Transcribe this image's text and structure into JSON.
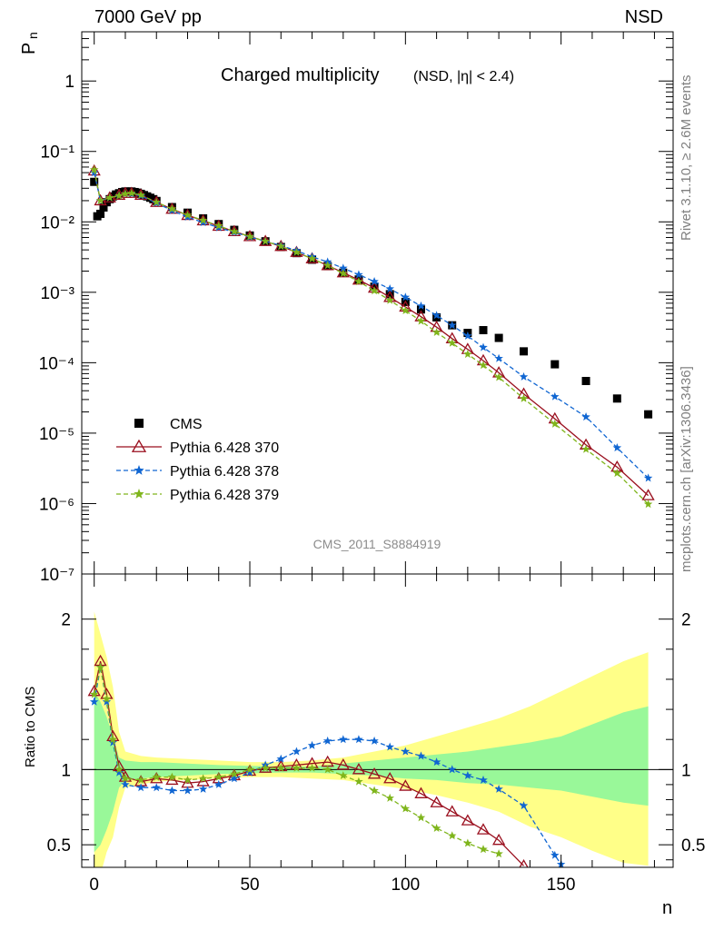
{
  "header": {
    "left": "7000 GeV pp",
    "right": "NSD"
  },
  "side_text": {
    "rivet": "Rivet 3.1.10, ≥ 2.6M events",
    "mcplots": "mcplots.cern.ch [arXiv:1306.3436]"
  },
  "chart_data": [
    {
      "type": "scatter",
      "title": "Charged multiplicity",
      "title_suffix": "(NSD, |η| < 2.4)",
      "ylabel": "P",
      "ylabel_sub": "n",
      "watermark": "CMS_2011_S8884919",
      "yscale": "log",
      "ylim": [
        1e-07,
        5
      ],
      "xlim": [
        -4,
        186
      ],
      "y_tick_labels": [
        "1",
        "10⁻¹",
        "10⁻²",
        "10⁻³",
        "10⁻⁴",
        "10⁻⁵",
        "10⁻⁶",
        "10⁻⁷"
      ],
      "legend": {
        "position": "bottom-left",
        "entries": [
          "CMS",
          "Pythia 6.428 370",
          "Pythia 6.428 378",
          "Pythia 6.428 379"
        ]
      },
      "series": [
        {
          "name": "CMS",
          "marker": "square",
          "color": "#000000",
          "x": [
            0,
            1,
            2,
            3,
            4,
            5,
            6,
            7,
            8,
            9,
            10,
            11,
            12,
            13,
            14,
            15,
            16,
            17,
            18,
            19,
            20,
            25,
            30,
            35,
            40,
            45,
            50,
            55,
            60,
            65,
            70,
            75,
            80,
            85,
            90,
            95,
            100,
            105,
            110,
            115,
            120,
            125,
            130,
            138,
            148,
            158,
            168,
            178
          ],
          "y": [
            0.037,
            0.012,
            0.013,
            0.016,
            0.019,
            0.021,
            0.023,
            0.0245,
            0.0255,
            0.0265,
            0.027,
            0.027,
            0.027,
            0.0265,
            0.026,
            0.025,
            0.024,
            0.023,
            0.022,
            0.021,
            0.0198,
            0.0162,
            0.0135,
            0.0112,
            0.0093,
            0.0077,
            0.0064,
            0.0053,
            0.0044,
            0.0036,
            0.0029,
            0.00235,
            0.0019,
            0.00152,
            0.0012,
            0.00094,
            0.00073,
            0.00057,
            0.00044,
            0.00034,
            0.000265,
            0.00029,
            0.000225,
            0.000145,
            9.5e-05,
            5.5e-05,
            3.1e-05,
            1.85e-05
          ]
        },
        {
          "name": "Pythia 6.428 370",
          "marker": "triangle",
          "color": "#9a0f1e",
          "line": "solid",
          "x": [
            0,
            2,
            5,
            8,
            10,
            12,
            15,
            20,
            25,
            30,
            35,
            40,
            45,
            50,
            55,
            60,
            65,
            70,
            75,
            80,
            85,
            90,
            95,
            100,
            105,
            110,
            115,
            120,
            125,
            130,
            138,
            148,
            158,
            168,
            178
          ],
          "y": [
            0.053,
            0.02,
            0.022,
            0.024,
            0.0255,
            0.0255,
            0.024,
            0.019,
            0.0152,
            0.0124,
            0.0104,
            0.0087,
            0.0073,
            0.0062,
            0.0053,
            0.0045,
            0.0037,
            0.003,
            0.0024,
            0.0019,
            0.0015,
            0.00115,
            0.00085,
            0.00062,
            0.00045,
            0.00032,
            0.00022,
            0.000155,
            0.000107,
            7.2e-05,
            3.6e-05,
            1.6e-05,
            6.8e-06,
            3.3e-06,
            1.3e-06
          ]
        },
        {
          "name": "Pythia 6.428 378",
          "marker": "star",
          "color": "#1066d2",
          "line": "dashed",
          "x": [
            0,
            2,
            5,
            8,
            10,
            12,
            15,
            20,
            25,
            30,
            35,
            40,
            45,
            50,
            55,
            60,
            65,
            70,
            75,
            80,
            85,
            90,
            95,
            100,
            105,
            110,
            115,
            120,
            125,
            130,
            138,
            148,
            158,
            168,
            178
          ],
          "y": [
            0.05,
            0.02,
            0.022,
            0.0235,
            0.025,
            0.025,
            0.0235,
            0.0185,
            0.0145,
            0.0117,
            0.0098,
            0.0083,
            0.0071,
            0.0061,
            0.0053,
            0.0046,
            0.0039,
            0.0032,
            0.0027,
            0.0022,
            0.00178,
            0.00142,
            0.00112,
            0.00085,
            0.00064,
            0.00047,
            0.00034,
            0.00024,
            0.000165,
            0.000115,
            6.3e-05,
            3.3e-05,
            1.7e-05,
            6.2e-06,
            2.3e-06
          ]
        },
        {
          "name": "Pythia 6.428 379",
          "marker": "star",
          "color": "#7fb51c",
          "line": "dashed",
          "x": [
            0,
            2,
            5,
            8,
            10,
            12,
            15,
            20,
            25,
            30,
            35,
            40,
            45,
            50,
            55,
            60,
            65,
            70,
            75,
            80,
            85,
            90,
            95,
            100,
            105,
            110,
            115,
            120,
            125,
            130,
            138,
            148,
            158,
            168,
            178
          ],
          "y": [
            0.055,
            0.02,
            0.022,
            0.0235,
            0.025,
            0.0255,
            0.024,
            0.019,
            0.0153,
            0.0125,
            0.0105,
            0.0088,
            0.0073,
            0.0062,
            0.0053,
            0.0045,
            0.0037,
            0.003,
            0.0024,
            0.00185,
            0.00142,
            0.00105,
            0.00077,
            0.00055,
            0.00039,
            0.00027,
            0.00019,
            0.000132,
            9.2e-05,
            6.2e-05,
            3.1e-05,
            1.35e-05,
            5.9e-06,
            2.7e-06,
            9.8e-07
          ]
        }
      ]
    },
    {
      "type": "line",
      "ylabel": "Ratio to CMS",
      "xlabel": "n",
      "ylim": [
        0.35,
        2.3
      ],
      "y_ticks": [
        0.5,
        1,
        2
      ],
      "y_tick_labels": [
        "0.5",
        "1",
        "2"
      ],
      "x_ticks": [
        0,
        50,
        100,
        150
      ],
      "x_tick_labels": [
        "0",
        "50",
        "100",
        "150"
      ],
      "reference_line": 1,
      "bands": {
        "x": [
          0,
          2,
          4,
          6,
          8,
          10,
          15,
          20,
          30,
          40,
          50,
          60,
          70,
          80,
          90,
          100,
          110,
          120,
          130,
          140,
          150,
          160,
          170,
          178
        ],
        "inner": [
          [
            0.45,
            1.52
          ],
          [
            0.5,
            1.45
          ],
          [
            0.6,
            1.35
          ],
          [
            0.72,
            1.22
          ],
          [
            0.88,
            1.08
          ],
          [
            0.93,
            1.06
          ],
          [
            0.94,
            1.05
          ],
          [
            0.95,
            1.05
          ],
          [
            0.96,
            1.04
          ],
          [
            0.97,
            1.03
          ],
          [
            0.975,
            1.025
          ],
          [
            0.98,
            1.02
          ],
          [
            0.98,
            1.02
          ],
          [
            0.97,
            1.04
          ],
          [
            0.96,
            1.06
          ],
          [
            0.94,
            1.08
          ],
          [
            0.93,
            1.1
          ],
          [
            0.91,
            1.12
          ],
          [
            0.9,
            1.15
          ],
          [
            0.88,
            1.18
          ],
          [
            0.86,
            1.22
          ],
          [
            0.82,
            1.3
          ],
          [
            0.78,
            1.38
          ],
          [
            0.76,
            1.42
          ]
        ],
        "outer": [
          [
            0.3,
            2.05
          ],
          [
            0.3,
            1.9
          ],
          [
            0.45,
            1.75
          ],
          [
            0.55,
            1.55
          ],
          [
            0.75,
            1.25
          ],
          [
            0.88,
            1.12
          ],
          [
            0.9,
            1.09
          ],
          [
            0.92,
            1.08
          ],
          [
            0.93,
            1.07
          ],
          [
            0.94,
            1.06
          ],
          [
            0.95,
            1.05
          ],
          [
            0.95,
            1.05
          ],
          [
            0.94,
            1.06
          ],
          [
            0.93,
            1.08
          ],
          [
            0.9,
            1.12
          ],
          [
            0.87,
            1.16
          ],
          [
            0.83,
            1.22
          ],
          [
            0.78,
            1.28
          ],
          [
            0.72,
            1.34
          ],
          [
            0.62,
            1.42
          ],
          [
            0.55,
            1.52
          ],
          [
            0.46,
            1.62
          ],
          [
            0.38,
            1.72
          ],
          [
            0.36,
            1.78
          ]
        ]
      },
      "series": [
        {
          "name": "Pythia 6.428 370",
          "color": "#9a0f1e",
          "x": [
            0,
            2,
            4,
            6,
            8,
            10,
            15,
            20,
            25,
            30,
            35,
            40,
            45,
            50,
            55,
            60,
            65,
            70,
            75,
            80,
            85,
            90,
            95,
            100,
            105,
            110,
            115,
            120,
            125,
            130,
            138
          ],
          "y": [
            1.52,
            1.72,
            1.5,
            1.22,
            1.02,
            0.95,
            0.92,
            0.94,
            0.93,
            0.91,
            0.92,
            0.94,
            0.96,
            0.99,
            1.01,
            1.02,
            1.03,
            1.04,
            1.05,
            1.03,
            1.0,
            0.97,
            0.94,
            0.89,
            0.84,
            0.78,
            0.72,
            0.66,
            0.6,
            0.53,
            0.36
          ]
        },
        {
          "name": "Pythia 6.428 378",
          "color": "#1066d2",
          "x": [
            0,
            2,
            4,
            6,
            8,
            10,
            15,
            20,
            25,
            30,
            35,
            40,
            45,
            50,
            55,
            60,
            65,
            70,
            75,
            80,
            85,
            90,
            95,
            100,
            105,
            110,
            115,
            120,
            125,
            130,
            138,
            148,
            150
          ],
          "y": [
            1.45,
            1.68,
            1.45,
            1.18,
            0.98,
            0.9,
            0.88,
            0.88,
            0.86,
            0.86,
            0.87,
            0.9,
            0.94,
            0.98,
            1.03,
            1.07,
            1.12,
            1.16,
            1.19,
            1.2,
            1.2,
            1.19,
            1.15,
            1.12,
            1.09,
            1.05,
            1.0,
            0.96,
            0.93,
            0.87,
            0.76,
            0.43,
            0.37
          ]
        },
        {
          "name": "Pythia 6.428 379",
          "color": "#7fb51c",
          "x": [
            0,
            2,
            4,
            6,
            8,
            10,
            15,
            20,
            25,
            30,
            35,
            40,
            45,
            50,
            55,
            60,
            65,
            70,
            75,
            80,
            85,
            90,
            95,
            100,
            105,
            110,
            115,
            120,
            125,
            130
          ],
          "y": [
            1.5,
            1.68,
            1.47,
            1.2,
            1.0,
            0.94,
            0.93,
            0.95,
            0.95,
            0.93,
            0.94,
            0.95,
            0.97,
            1.0,
            1.01,
            1.01,
            1.01,
            1.01,
            1.0,
            0.96,
            0.92,
            0.86,
            0.81,
            0.74,
            0.68,
            0.61,
            0.56,
            0.51,
            0.47,
            0.44
          ]
        }
      ]
    }
  ]
}
